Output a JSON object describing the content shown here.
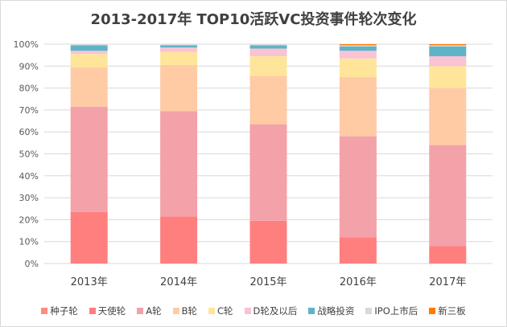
{
  "chart_data": {
    "type": "bar",
    "stacked": true,
    "title": "2013-2017年 TOP10活跃VC投资事件轮次变化",
    "xlabel": "",
    "ylabel": "",
    "ylim": [
      0,
      100
    ],
    "yticks": [
      "0%",
      "10%",
      "20%",
      "30%",
      "40%",
      "50%",
      "60%",
      "70%",
      "80%",
      "90%",
      "100%"
    ],
    "grid": true,
    "legend_position": "bottom",
    "categories": [
      "2013年",
      "2014年",
      "2015年",
      "2016年",
      "2017年"
    ],
    "series": [
      {
        "name": "种子轮",
        "color": "#ff8a80",
        "values": [
          0,
          0,
          0,
          0,
          0
        ]
      },
      {
        "name": "天使轮",
        "color": "#ff7f7f",
        "values": [
          23.5,
          21.5,
          19.5,
          12,
          8
        ]
      },
      {
        "name": "A轮",
        "color": "#f2a2a8",
        "values": [
          48,
          48,
          44,
          46,
          46
        ]
      },
      {
        "name": "B轮",
        "color": "#ffcba4",
        "values": [
          18,
          21,
          22,
          27,
          26
        ]
      },
      {
        "name": "C轮",
        "color": "#ffe59a",
        "values": [
          6,
          6,
          9,
          8.5,
          10
        ]
      },
      {
        "name": "D轮及以后",
        "color": "#f9c3d4",
        "values": [
          1.5,
          2,
          3.5,
          3.5,
          4.5
        ]
      },
      {
        "name": "战略投资",
        "color": "#5fb3c6",
        "values": [
          2.5,
          1,
          1.5,
          2,
          4.5
        ]
      },
      {
        "name": "IPO上市后",
        "color": "#d9d9d9",
        "values": [
          0.5,
          0.5,
          0.5,
          0.5,
          0.5
        ]
      },
      {
        "name": "新三板",
        "color": "#ff7a00",
        "values": [
          0,
          0,
          0,
          0.5,
          0.5
        ]
      }
    ]
  }
}
